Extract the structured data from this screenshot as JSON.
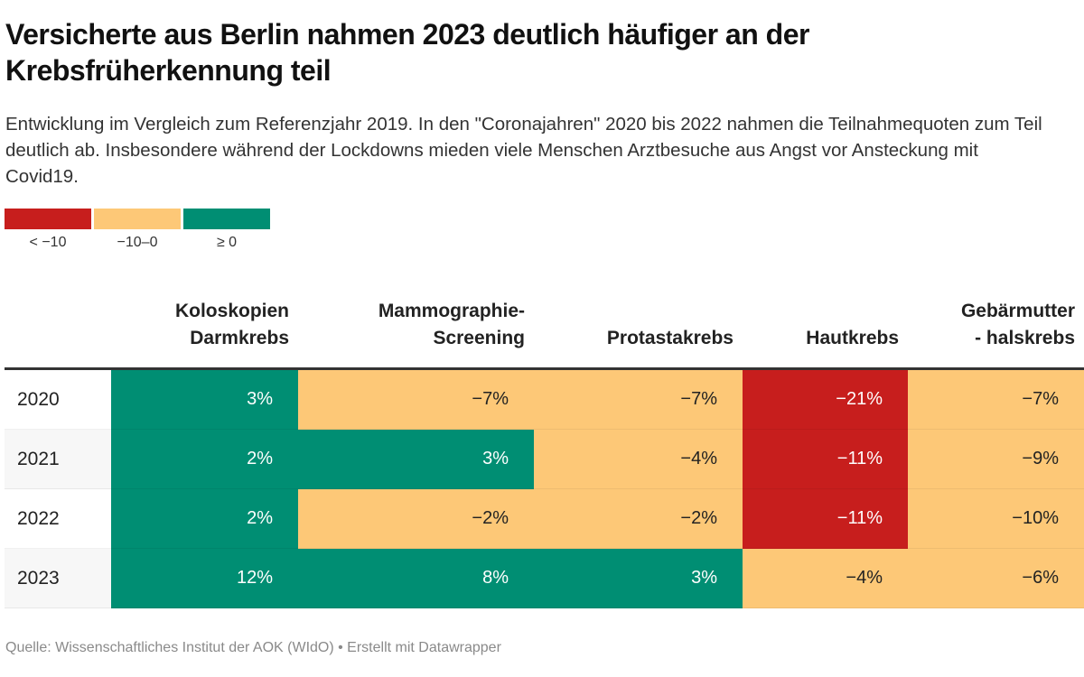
{
  "title": "Versicherte aus Berlin nahmen 2023 deutlich häufiger an der Krebsfrüherkennung teil",
  "subtitle": "Entwicklung im Vergleich zum Referenzjahr 2019. In den \"Coronajahren\" 2020 bis 2022 nahmen die Teilnahmequoten zum Teil deutlich ab. Insbesondere während der Lockdowns mieden viele Menschen Arztbesuche aus Angst vor Ansteckung mit Covid19.",
  "legend": [
    {
      "label": "< −10",
      "color": "#c71e1d"
    },
    {
      "label": "−10–0",
      "color": "#fdc877"
    },
    {
      "label": "≥ 0",
      "color": "#008e73"
    }
  ],
  "footer": "Quelle: Wissenschaftliches Institut der AOK (WIdO) • Erstellt mit Datawrapper",
  "chart_data": {
    "type": "table",
    "title": "Versicherte aus Berlin nahmen 2023 deutlich häufiger an der Krebsfrüherkennung teil",
    "columns": [
      "Koloskopien\nDarmkrebs",
      "Mammographie-\nScreening",
      "Protastakrebs",
      "Hautkrebs",
      "Gebärmutter\n- halskrebs"
    ],
    "rows": [
      {
        "year": "2020",
        "values": [
          3,
          -7,
          -7,
          -21,
          -7
        ],
        "labels": [
          "3%",
          "−7%",
          "−7%",
          "−21%",
          "−7%"
        ]
      },
      {
        "year": "2021",
        "values": [
          2,
          3,
          -4,
          -11,
          -9
        ],
        "labels": [
          "2%",
          "3%",
          "−4%",
          "−11%",
          "−9%"
        ]
      },
      {
        "year": "2022",
        "values": [
          2,
          -2,
          -2,
          -11,
          -10
        ],
        "labels": [
          "2%",
          "−2%",
          "−2%",
          "−11%",
          "−10%"
        ]
      },
      {
        "year": "2023",
        "values": [
          12,
          8,
          3,
          -4,
          -6
        ],
        "labels": [
          "12%",
          "8%",
          "3%",
          "−4%",
          "−6%"
        ]
      }
    ],
    "color_scale": [
      {
        "range": "< -10",
        "color": "#c71e1d",
        "text_color": "#ffffff"
      },
      {
        "range": "-10 to 0",
        "color": "#fdc877",
        "text_color": "#222222"
      },
      {
        "range": ">= 0",
        "color": "#008e73",
        "text_color": "#ffffff"
      }
    ],
    "stripe_color": "#f7f7f7"
  }
}
